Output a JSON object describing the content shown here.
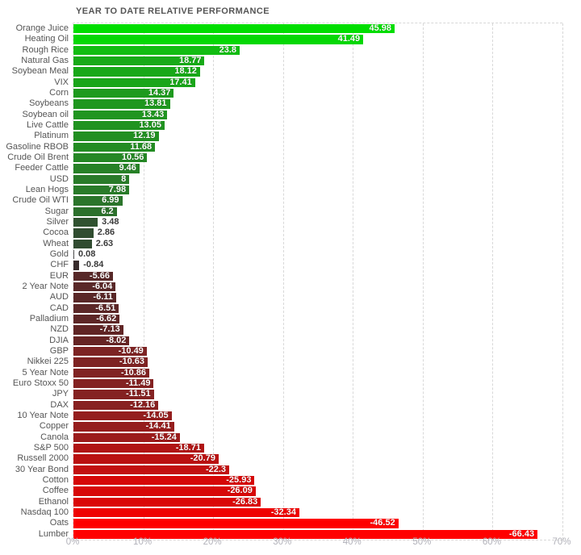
{
  "title": "YEAR TO DATE RELATIVE PERFORMANCE",
  "colors": {
    "background": "#ffffff",
    "title_text": "#555555",
    "category_text": "#555555",
    "tick_text": "#b2b2ba",
    "grid": "#d8d8d8",
    "value_inside_text": "#ffffff",
    "value_outside_text": "#3a3a3a"
  },
  "chart_data": {
    "type": "bar",
    "orientation": "horizontal",
    "title": "YEAR TO DATE RELATIVE PERFORMANCE",
    "xlabel": "",
    "ylabel": "",
    "grid": true,
    "x_axis": {
      "unit": "%",
      "min": 0,
      "max": 70,
      "tick_step": 10,
      "tick_labels": [
        "0%",
        "10%",
        "20%",
        "30%",
        "40%",
        "50%",
        "60%",
        "70%"
      ],
      "note": "bar length encodes absolute value of performance"
    },
    "series": [
      {
        "name": "Orange Juice",
        "value": 45.98,
        "display": "45.98",
        "color": "#00de00",
        "value_label_inside": true
      },
      {
        "name": "Heating Oil",
        "value": 41.49,
        "display": "41.49",
        "color": "#05d805",
        "value_label_inside": true
      },
      {
        "name": "Rough Rice",
        "value": 23.8,
        "display": "23.8",
        "color": "#12bd12",
        "value_label_inside": true
      },
      {
        "name": "Natural Gas",
        "value": 18.77,
        "display": "18.77",
        "color": "#17aa17",
        "value_label_inside": true
      },
      {
        "name": "Soybean Meal",
        "value": 18.12,
        "display": "18.12",
        "color": "#18a818",
        "value_label_inside": true
      },
      {
        "name": "VIX",
        "value": 17.41,
        "display": "17.41",
        "color": "#19a519",
        "value_label_inside": true
      },
      {
        "name": "Corn",
        "value": 14.37,
        "display": "14.37",
        "color": "#1e9a1e",
        "value_label_inside": true
      },
      {
        "name": "Soybeans",
        "value": 13.81,
        "display": "13.81",
        "color": "#1f971f",
        "value_label_inside": true
      },
      {
        "name": "Soybean oil",
        "value": 13.43,
        "display": "13.43",
        "color": "#209520",
        "value_label_inside": true
      },
      {
        "name": "Live Cattle",
        "value": 13.05,
        "display": "13.05",
        "color": "#209320",
        "value_label_inside": true
      },
      {
        "name": "Platinum",
        "value": 12.19,
        "display": "12.19",
        "color": "#228f22",
        "value_label_inside": true
      },
      {
        "name": "Gasoline RBOB",
        "value": 11.68,
        "display": "11.68",
        "color": "#238c23",
        "value_label_inside": true
      },
      {
        "name": "Crude Oil Brent",
        "value": 10.56,
        "display": "10.56",
        "color": "#258725",
        "value_label_inside": true
      },
      {
        "name": "Feeder Cattle",
        "value": 9.46,
        "display": "9.46",
        "color": "#278127",
        "value_label_inside": true
      },
      {
        "name": "USD",
        "value": 8,
        "display": "8",
        "color": "#297b29",
        "value_label_inside": true
      },
      {
        "name": "Lean Hogs",
        "value": 7.98,
        "display": "7.98",
        "color": "#297b29",
        "value_label_inside": true
      },
      {
        "name": "Crude Oil WTI",
        "value": 6.99,
        "display": "6.99",
        "color": "#2b752b",
        "value_label_inside": true
      },
      {
        "name": "Sugar",
        "value": 6.2,
        "display": "6.2",
        "color": "#2c702c",
        "value_label_inside": true
      },
      {
        "name": "Silver",
        "value": 3.48,
        "display": "3.48",
        "color": "#305230",
        "value_label_inside": false
      },
      {
        "name": "Cocoa",
        "value": 2.86,
        "display": "2.86",
        "color": "#304d30",
        "value_label_inside": false
      },
      {
        "name": "Wheat",
        "value": 2.63,
        "display": "2.63",
        "color": "#314c31",
        "value_label_inside": false
      },
      {
        "name": "Gold",
        "value": 0.08,
        "display": "0.08",
        "color": "#555555",
        "value_label_inside": false
      },
      {
        "name": "CHF",
        "value": -0.84,
        "display": "-0.84",
        "color": "#382c2c",
        "value_label_inside": false
      },
      {
        "name": "EUR",
        "value": -5.66,
        "display": "-5.66",
        "color": "#572828",
        "value_label_inside": true
      },
      {
        "name": "2 Year Note",
        "value": -6.04,
        "display": "-6.04",
        "color": "#592828",
        "value_label_inside": true
      },
      {
        "name": "AUD",
        "value": -6.11,
        "display": "-6.11",
        "color": "#592727",
        "value_label_inside": true
      },
      {
        "name": "CAD",
        "value": -6.51,
        "display": "-6.51",
        "color": "#5c2727",
        "value_label_inside": true
      },
      {
        "name": "Palladium",
        "value": -6.62,
        "display": "-6.62",
        "color": "#5d2626",
        "value_label_inside": true
      },
      {
        "name": "NZD",
        "value": -7.13,
        "display": "-7.13",
        "color": "#602525",
        "value_label_inside": true
      },
      {
        "name": "DJIA",
        "value": -8.02,
        "display": "-8.02",
        "color": "#662424",
        "value_label_inside": true
      },
      {
        "name": "GBP",
        "value": -10.49,
        "display": "-10.49",
        "color": "#7d2424",
        "value_label_inside": true
      },
      {
        "name": "Nikkei 225",
        "value": -10.63,
        "display": "-10.63",
        "color": "#7e2323",
        "value_label_inside": true
      },
      {
        "name": "5 Year Note",
        "value": -10.86,
        "display": "-10.86",
        "color": "#802323",
        "value_label_inside": true
      },
      {
        "name": "Euro Stoxx 50",
        "value": -11.49,
        "display": "-11.49",
        "color": "#842222",
        "value_label_inside": true
      },
      {
        "name": "JPY",
        "value": -11.51,
        "display": "-11.51",
        "color": "#842222",
        "value_label_inside": true
      },
      {
        "name": "DAX",
        "value": -12.16,
        "display": "-12.16",
        "color": "#882121",
        "value_label_inside": true
      },
      {
        "name": "10 Year Note",
        "value": -14.05,
        "display": "-14.05",
        "color": "#941e1e",
        "value_label_inside": true
      },
      {
        "name": "Copper",
        "value": -14.41,
        "display": "-14.41",
        "color": "#951d1d",
        "value_label_inside": true
      },
      {
        "name": "Canola",
        "value": -15.24,
        "display": "-15.24",
        "color": "#9b1c1c",
        "value_label_inside": true
      },
      {
        "name": "S&P 500",
        "value": -18.71,
        "display": "-18.71",
        "color": "#b01414",
        "value_label_inside": true
      },
      {
        "name": "Russell 2000",
        "value": -20.79,
        "display": "-20.79",
        "color": "#ba1111",
        "value_label_inside": true
      },
      {
        "name": "30 Year Bond",
        "value": -22.3,
        "display": "-22.3",
        "color": "#c21010",
        "value_label_inside": true
      },
      {
        "name": "Cotton",
        "value": -25.93,
        "display": "-25.93",
        "color": "#d60808",
        "value_label_inside": true
      },
      {
        "name": "Coffee",
        "value": -26.09,
        "display": "-26.09",
        "color": "#d70808",
        "value_label_inside": true
      },
      {
        "name": "Ethanol",
        "value": -26.83,
        "display": "-26.83",
        "color": "#da0707",
        "value_label_inside": true
      },
      {
        "name": "Nasdaq 100",
        "value": -32.34,
        "display": "-32.34",
        "color": "#ef0202",
        "value_label_inside": true
      },
      {
        "name": "Oats",
        "value": -46.52,
        "display": "-46.52",
        "color": "#fe0000",
        "value_label_inside": true
      },
      {
        "name": "Lumber",
        "value": -66.43,
        "display": "-66.43",
        "color": "#ff0000",
        "value_label_inside": true
      }
    ]
  }
}
